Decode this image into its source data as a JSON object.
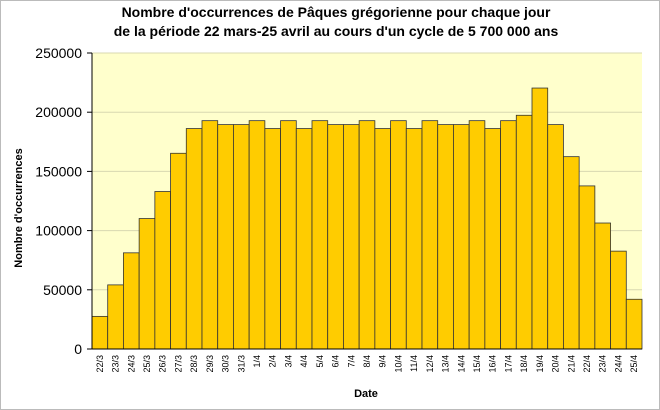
{
  "chart_data": {
    "type": "bar",
    "title": [
      "Nombre d'occurrences de Pâques grégorienne pour chaque jour",
      "de la période 22 mars-25 avril au cours d'un cycle de 5 700 000 ans"
    ],
    "x_label": "Date",
    "y_label": "Nombre d'occurrences",
    "categories": [
      "22/3",
      "23/3",
      "24/3",
      "25/3",
      "26/3",
      "27/3",
      "28/3",
      "29/3",
      "30/3",
      "31/3",
      "1/4",
      "2/4",
      "3/4",
      "4/4",
      "5/4",
      "6/4",
      "7/4",
      "8/4",
      "9/4",
      "10/4",
      "11/4",
      "12/4",
      "13/4",
      "14/4",
      "15/4",
      "16/4",
      "17/4",
      "18/4",
      "19/4",
      "20/4",
      "21/4",
      "22/4",
      "23/4",
      "24/4",
      "25/4"
    ],
    "values": [
      27550,
      54150,
      81225,
      110200,
      133000,
      165300,
      186200,
      192850,
      189525,
      189525,
      192850,
      186200,
      192850,
      186200,
      192850,
      189525,
      189525,
      192850,
      186200,
      192850,
      186200,
      192850,
      189525,
      189525,
      192850,
      186200,
      192850,
      197400,
      220400,
      189525,
      162450,
      137750,
      106400,
      82650,
      42000
    ],
    "color": "#ffcc00",
    "ylim": [
      0,
      250000
    ],
    "yticks": [
      0,
      50000,
      100000,
      150000,
      200000,
      250000
    ],
    "grid": true
  }
}
